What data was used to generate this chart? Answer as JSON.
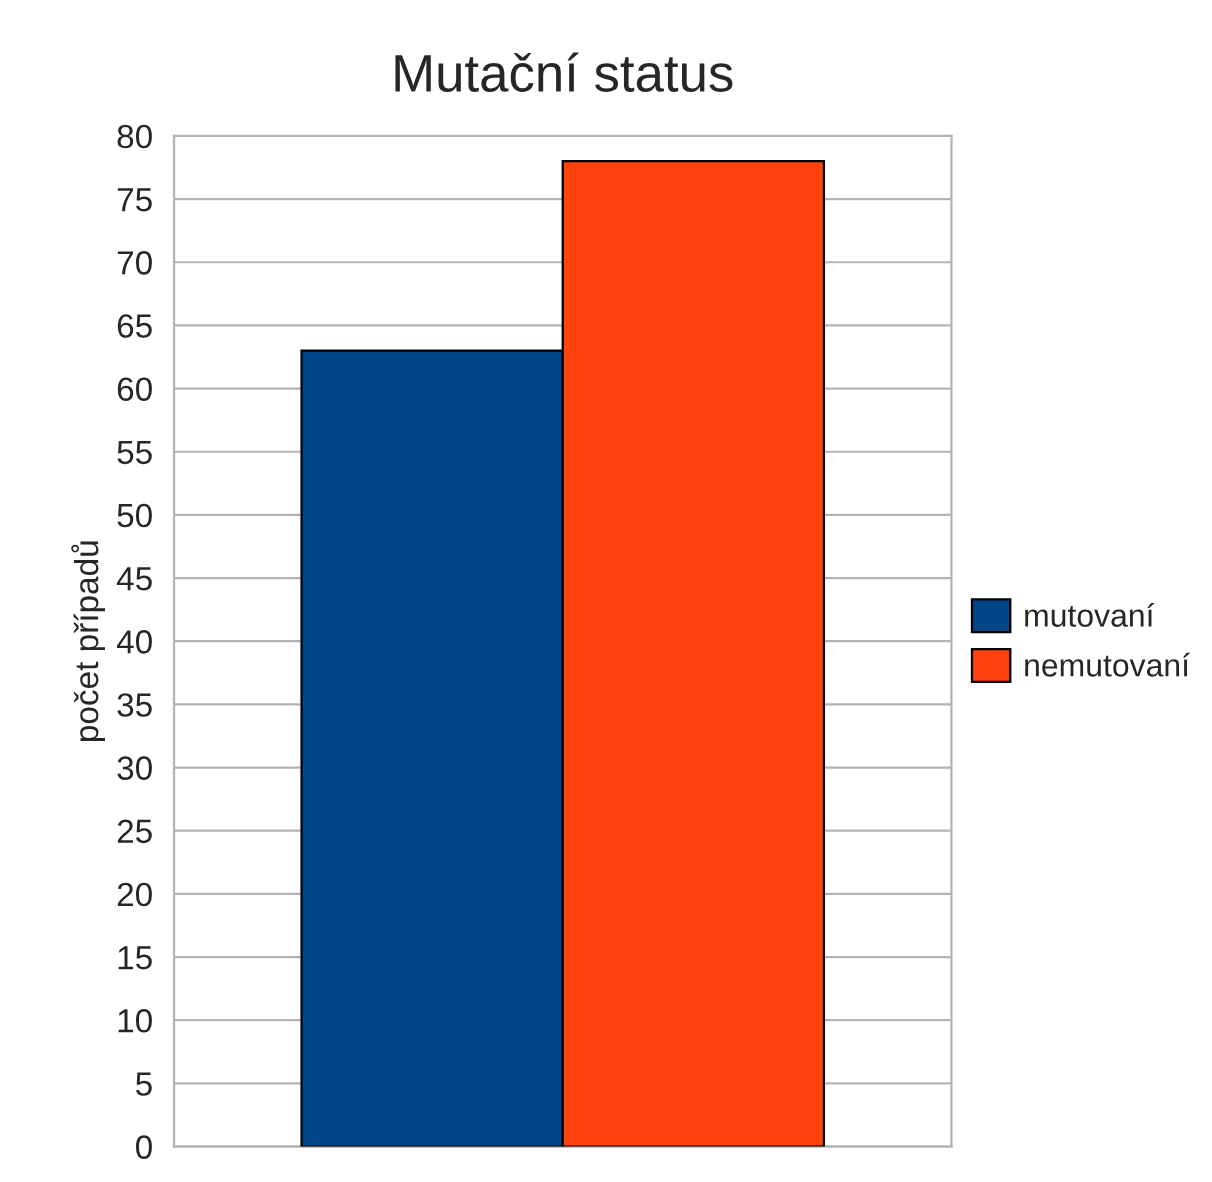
{
  "chart_data": {
    "type": "bar",
    "title": "Mutační status",
    "ylabel": "počet případů",
    "categories": [
      null
    ],
    "series": [
      {
        "name": "mutovaní",
        "color": "#004586",
        "values": [
          63
        ]
      },
      {
        "name": "nemutovaní",
        "color": "#ff420e",
        "values": [
          78
        ]
      }
    ],
    "ylim": [
      0,
      80
    ],
    "yticks": [
      0,
      5,
      10,
      15,
      20,
      25,
      30,
      35,
      40,
      45,
      50,
      55,
      60,
      65,
      70,
      75,
      80
    ],
    "grid": "y",
    "legend": "right"
  }
}
